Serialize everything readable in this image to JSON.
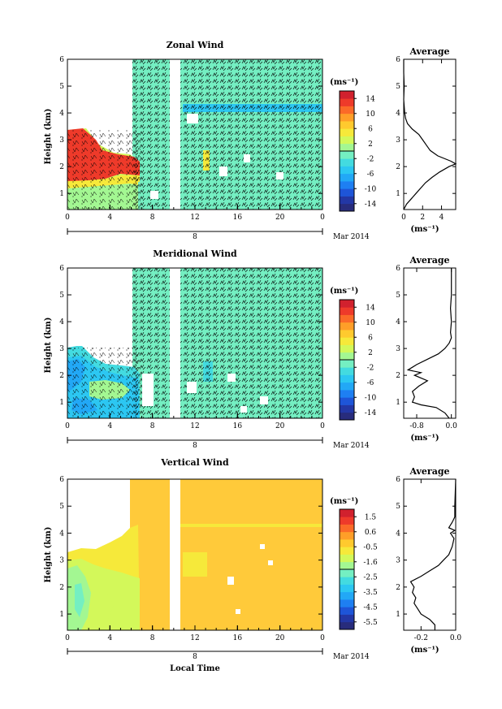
{
  "colors": {
    "background_field": "#74efc2",
    "vertical_field": "#ffca3a",
    "axis": "#000000",
    "colormap": [
      "#282c7c",
      "#2337a5",
      "#1e55d8",
      "#1e7ff2",
      "#22a8f6",
      "#2cc7f2",
      "#43dbe0",
      "#74efc2",
      "#a3f792",
      "#d3f85a",
      "#f6e93a",
      "#ffca2e",
      "#ff9e28",
      "#fb6a28",
      "#ee3a2a",
      "#d1212e"
    ]
  },
  "chart_data": [
    {
      "type": "heatmap",
      "title": "Zonal Wind",
      "ylabel": "Height (km)",
      "xticks": [
        "0",
        "4",
        "8",
        "12",
        "16",
        "20",
        "0"
      ],
      "xlim": [
        0,
        24
      ],
      "ylim": [
        0.4,
        6
      ],
      "yticks": [
        "1",
        "2",
        "3",
        "4",
        "5",
        "6"
      ],
      "day_label": "8",
      "date_label": "Mar 2014",
      "colorbar": {
        "unit": "(ms⁻¹)",
        "ticks": [
          "14",
          "10",
          "6",
          "2",
          "-2",
          "-6",
          "-10",
          "-14"
        ],
        "range": [
          -16,
          16
        ]
      },
      "data_gap_hours": [
        9.4,
        10.6
      ],
      "average_panel": {
        "title": "Average",
        "xlabel": "(ms⁻¹)",
        "xticks": [
          "0",
          "2",
          "4"
        ],
        "xlim": [
          0,
          5.5
        ],
        "yticks": [
          "1",
          "2",
          "3",
          "4",
          "5",
          "6"
        ],
        "profile": [
          [
            0.4,
            0.0
          ],
          [
            0.6,
            0.3
          ],
          [
            0.8,
            0.8
          ],
          [
            1.0,
            1.3
          ],
          [
            1.2,
            1.8
          ],
          [
            1.4,
            2.3
          ],
          [
            1.6,
            3.0
          ],
          [
            1.8,
            3.8
          ],
          [
            2.0,
            4.8
          ],
          [
            2.1,
            5.5
          ],
          [
            2.2,
            5.0
          ],
          [
            2.4,
            3.6
          ],
          [
            2.6,
            2.8
          ],
          [
            2.8,
            2.4
          ],
          [
            3.0,
            2.0
          ],
          [
            3.2,
            1.6
          ],
          [
            3.4,
            0.9
          ],
          [
            3.6,
            0.4
          ],
          [
            3.8,
            0.2
          ],
          [
            4.0,
            0.1
          ],
          [
            4.5,
            0.0
          ],
          [
            5.0,
            0.05
          ],
          [
            5.5,
            0.0
          ],
          [
            6.0,
            0.0
          ]
        ]
      }
    },
    {
      "type": "heatmap",
      "title": "Meridional Wind",
      "ylabel": "Height (km)",
      "xticks": [
        "0",
        "4",
        "8",
        "12",
        "16",
        "20",
        "0"
      ],
      "xlim": [
        0,
        24
      ],
      "ylim": [
        0.4,
        6
      ],
      "yticks": [
        "1",
        "2",
        "3",
        "4",
        "5",
        "6"
      ],
      "day_label": "8",
      "date_label": "Mar 2014",
      "colorbar": {
        "unit": "(ms⁻¹)",
        "ticks": [
          "14",
          "10",
          "6",
          "2",
          "-2",
          "-6",
          "-10",
          "-14"
        ],
        "range": [
          -16,
          16
        ]
      },
      "data_gap_hours": [
        9.4,
        10.6
      ],
      "average_panel": {
        "title": "Average",
        "xlabel": "(ms⁻¹)",
        "xticks": [
          "-0.8",
          "0.0"
        ],
        "xlim": [
          -1.1,
          0.1
        ],
        "yticks": [
          "1",
          "2",
          "3",
          "4",
          "5",
          "6"
        ],
        "profile": [
          [
            0.4,
            -0.05
          ],
          [
            0.6,
            -0.15
          ],
          [
            0.8,
            -0.35
          ],
          [
            0.9,
            -0.7
          ],
          [
            1.0,
            -0.9
          ],
          [
            1.2,
            -0.85
          ],
          [
            1.4,
            -0.9
          ],
          [
            1.6,
            -0.75
          ],
          [
            1.8,
            -0.55
          ],
          [
            2.0,
            -0.85
          ],
          [
            2.1,
            -0.7
          ],
          [
            2.2,
            -1.0
          ],
          [
            2.4,
            -0.8
          ],
          [
            2.6,
            -0.55
          ],
          [
            2.8,
            -0.3
          ],
          [
            3.0,
            -0.15
          ],
          [
            3.2,
            -0.05
          ],
          [
            3.4,
            0.0
          ],
          [
            3.6,
            -0.02
          ],
          [
            4.0,
            0.0
          ],
          [
            4.5,
            -0.02
          ],
          [
            5.0,
            0.0
          ],
          [
            6.0,
            0.0
          ]
        ]
      }
    },
    {
      "type": "heatmap",
      "title": "Vertical Wind",
      "ylabel": "Height (km)",
      "xlabel": "Local Time",
      "xticks": [
        "0",
        "4",
        "8",
        "12",
        "16",
        "20",
        "0"
      ],
      "xlim": [
        0,
        24
      ],
      "ylim": [
        0.4,
        6
      ],
      "yticks": [
        "1",
        "2",
        "3",
        "4",
        "5",
        "6"
      ],
      "day_label": "8",
      "date_label": "Mar 2014",
      "colorbar": {
        "unit": "(ms⁻¹)",
        "ticks": [
          "1.5",
          "0.6",
          "-0.5",
          "-1.6",
          "-2.5",
          "-3.5",
          "-4.5",
          "-5.5"
        ],
        "range": [
          -6,
          2
        ]
      },
      "data_gap_hours": [
        9.4,
        10.6
      ],
      "average_panel": {
        "title": "Average",
        "xlabel": "(ms⁻¹)",
        "xticks": [
          "-0.2",
          "0.0"
        ],
        "xlim": [
          -0.3,
          0.0
        ],
        "yticks": [
          "1",
          "2",
          "3",
          "4",
          "5",
          "6"
        ],
        "profile": [
          [
            0.4,
            -0.12
          ],
          [
            0.6,
            -0.12
          ],
          [
            0.8,
            -0.15
          ],
          [
            1.0,
            -0.2
          ],
          [
            1.2,
            -0.22
          ],
          [
            1.4,
            -0.24
          ],
          [
            1.6,
            -0.23
          ],
          [
            1.8,
            -0.25
          ],
          [
            2.0,
            -0.24
          ],
          [
            2.2,
            -0.26
          ],
          [
            2.4,
            -0.2
          ],
          [
            2.6,
            -0.15
          ],
          [
            2.8,
            -0.1
          ],
          [
            3.0,
            -0.07
          ],
          [
            3.2,
            -0.04
          ],
          [
            3.5,
            -0.02
          ],
          [
            3.8,
            -0.01
          ],
          [
            4.0,
            -0.03
          ],
          [
            4.1,
            -0.005
          ],
          [
            4.2,
            -0.04
          ],
          [
            4.4,
            -0.02
          ],
          [
            4.6,
            -0.005
          ],
          [
            5.0,
            -0.005
          ],
          [
            6.0,
            0.0
          ]
        ]
      }
    }
  ]
}
